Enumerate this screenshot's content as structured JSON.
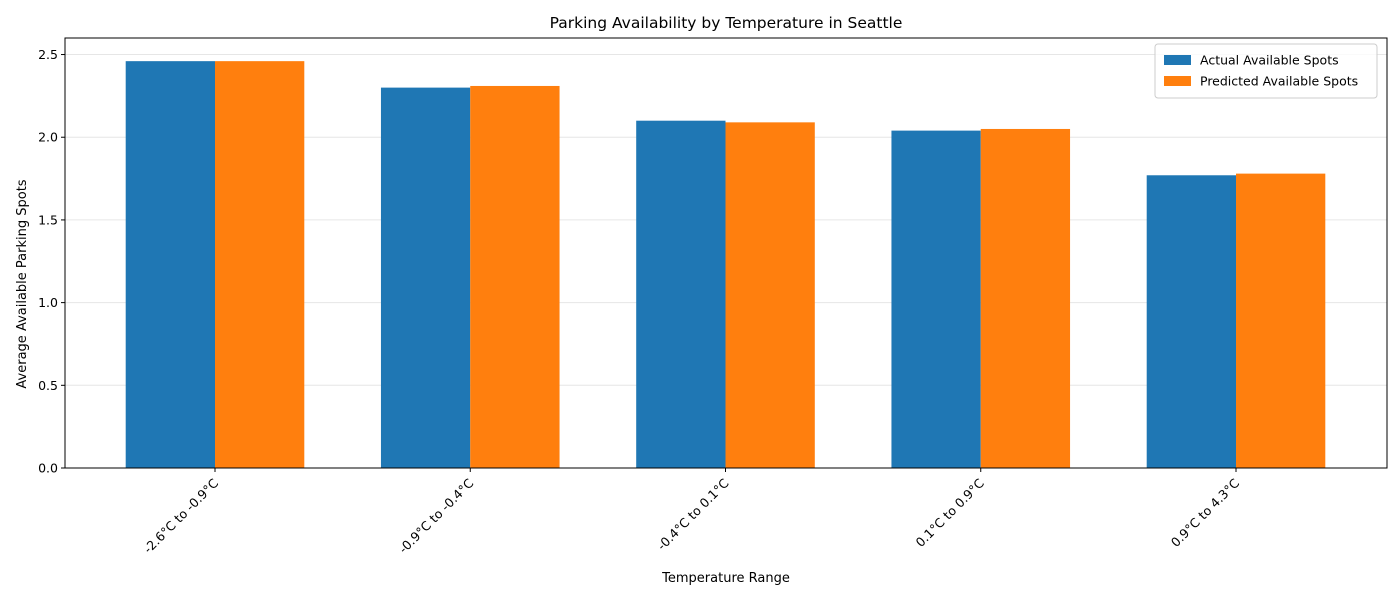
{
  "chart_data": {
    "type": "bar",
    "title": "Parking Availability by Temperature in Seattle",
    "xlabel": "Temperature Range",
    "ylabel": "Average Available Parking Spots",
    "categories": [
      "-2.6°C to -0.9°C",
      "-0.9°C to -0.4°C",
      "-0.4°C to 0.1°C",
      "0.1°C to 0.9°C",
      "0.9°C to 4.3°C"
    ],
    "series": [
      {
        "name": "Actual Available Spots",
        "values": [
          2.46,
          2.3,
          2.1,
          2.04,
          1.77
        ],
        "color": "#1f77b4"
      },
      {
        "name": "Predicted Available Spots",
        "values": [
          2.46,
          2.31,
          2.09,
          2.05,
          1.78
        ],
        "color": "#ff7f0e"
      }
    ],
    "ylim": [
      0,
      2.6
    ],
    "yticks": [
      "0.0",
      "0.5",
      "1.0",
      "1.5",
      "2.0",
      "2.5"
    ],
    "grid": "y",
    "legend": "top-right"
  }
}
